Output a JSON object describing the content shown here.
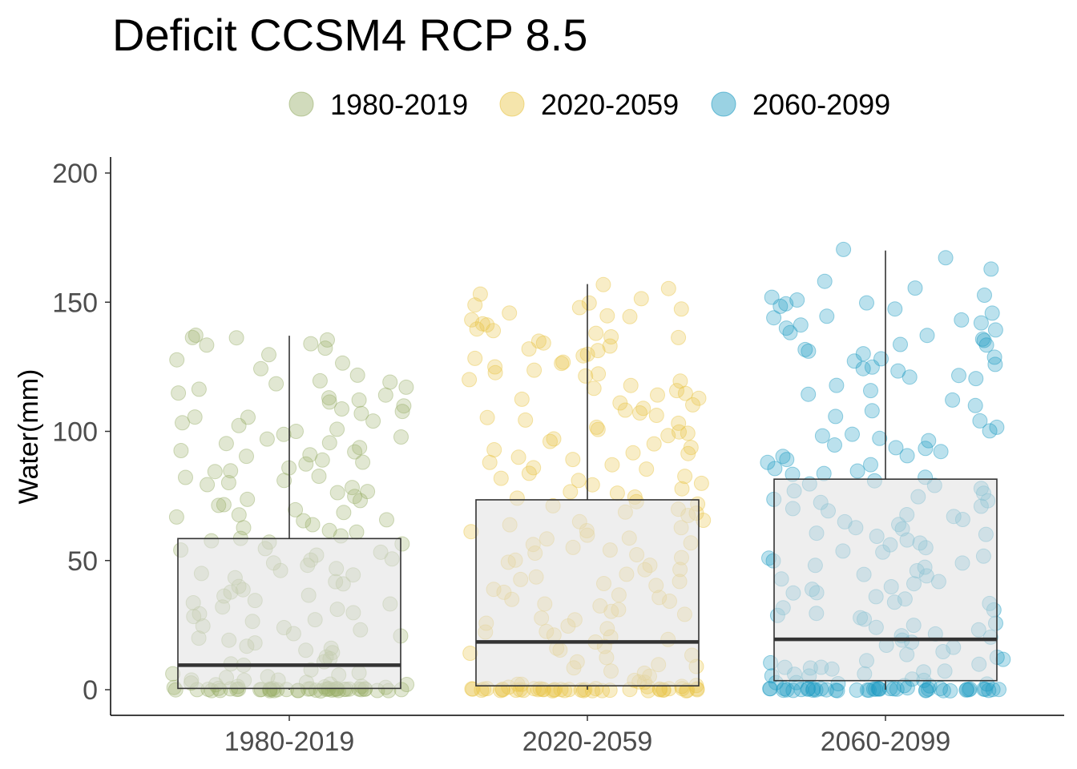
{
  "chart_data": {
    "type": "boxplot-jitter",
    "title": "Deficit CCSM4 RCP 8.5",
    "xlabel": "",
    "ylabel": "Water(mm)",
    "ylim": [
      0,
      200
    ],
    "y_ticks": [
      "0",
      "50",
      "100",
      "150",
      "200"
    ],
    "categories": [
      "1980-2019",
      "2020-2059",
      "2060-2099"
    ],
    "legend": {
      "position": "top",
      "entries": [
        "1980-2019",
        "2020-2059",
        "2060-2099"
      ]
    },
    "grid": false,
    "box_fill": "#e0e0e0",
    "box_stroke": "#333333",
    "series": [
      {
        "name": "1980-2019",
        "color": "#9aaf6b",
        "box": {
          "whisker_low": 0,
          "q1": 0.5,
          "median": 9.5,
          "q3": 58.5,
          "whisker_high": 137
        },
        "points": [
          0,
          0,
          0,
          0,
          0,
          0,
          0,
          0,
          0,
          0,
          0,
          0,
          0,
          0,
          0,
          0,
          0,
          0,
          0,
          0,
          0,
          0,
          0,
          0,
          0,
          0,
          0,
          0,
          0,
          0,
          0,
          0,
          0,
          0,
          0,
          0,
          0,
          0,
          0,
          0,
          0.5,
          0.5,
          1,
          1,
          1,
          1.5,
          1.5,
          2,
          2,
          2.5,
          3,
          3,
          3.5,
          4,
          4,
          5,
          5,
          6,
          6,
          7,
          8,
          9,
          10,
          11,
          12,
          13,
          14,
          15,
          16,
          17,
          18,
          19,
          20,
          21,
          22,
          23,
          24,
          25,
          26,
          27,
          28,
          29,
          30,
          31,
          32,
          33,
          34,
          35,
          36,
          37,
          38,
          39,
          40,
          41,
          42,
          43,
          44,
          45,
          46,
          47,
          48,
          49,
          50,
          51,
          52,
          53,
          54,
          55,
          56,
          57,
          58,
          59,
          60,
          61,
          62,
          63,
          64,
          65,
          66,
          67,
          68,
          69,
          70,
          71,
          72,
          73,
          74,
          75,
          76,
          77,
          78,
          79,
          80,
          81,
          82,
          83,
          84,
          85,
          86,
          87,
          88,
          89,
          90,
          91,
          92,
          93,
          94,
          95,
          96,
          97,
          98,
          99,
          100,
          101,
          102,
          103,
          104,
          105,
          106,
          107,
          108,
          109,
          110,
          111,
          112,
          113,
          114,
          115,
          116,
          117,
          118,
          119,
          120,
          122,
          124,
          126,
          128,
          130,
          132,
          133,
          134,
          135,
          136,
          136,
          137
        ]
      },
      {
        "name": "2020-2059",
        "color": "#e8c547",
        "box": {
          "whisker_low": 0,
          "q1": 1.5,
          "median": 18.5,
          "q3": 73.5,
          "whisker_high": 157
        },
        "points": [
          0,
          0,
          0,
          0,
          0,
          0,
          0,
          0,
          0,
          0,
          0,
          0,
          0,
          0,
          0,
          0,
          0,
          0,
          0,
          0,
          0,
          0,
          0,
          0,
          0,
          0,
          0,
          0,
          0,
          0,
          0,
          0,
          0,
          0,
          0,
          0,
          0,
          0,
          0,
          0,
          0.5,
          0.5,
          1,
          1,
          1.5,
          2,
          2,
          3,
          3,
          4,
          5,
          6,
          7,
          8,
          9,
          10,
          11,
          12,
          13,
          14,
          15,
          16,
          17,
          18,
          19,
          20,
          21,
          22,
          23,
          24,
          25,
          26,
          27,
          28,
          29,
          30,
          31,
          32,
          33,
          34,
          35,
          36,
          37,
          38,
          39,
          40,
          41,
          42,
          43,
          44,
          45,
          46,
          47,
          48,
          49,
          50,
          51,
          52,
          53,
          54,
          55,
          56,
          57,
          58,
          59,
          60,
          61,
          62,
          63,
          64,
          65,
          66,
          67,
          68,
          69,
          70,
          71,
          72,
          73,
          74,
          75,
          76,
          77,
          78,
          79,
          80,
          81,
          82,
          83,
          84,
          85,
          86,
          87,
          88,
          89,
          90,
          91,
          92,
          93,
          94,
          95,
          96,
          97,
          98,
          99,
          100,
          101,
          102,
          103,
          104,
          105,
          106,
          107,
          108,
          109,
          110,
          111,
          112,
          113,
          114,
          115,
          116,
          117,
          118,
          119,
          120,
          121,
          122,
          123,
          124,
          125,
          126,
          127,
          128,
          129,
          130,
          131,
          132,
          133,
          134,
          135,
          136,
          137,
          138,
          139,
          140,
          141,
          142,
          143,
          144,
          145,
          146,
          147,
          148,
          149,
          150,
          151,
          153,
          155,
          157
        ]
      },
      {
        "name": "2060-2099",
        "color": "#1f9bc2",
        "box": {
          "whisker_low": 0,
          "q1": 3.5,
          "median": 19.5,
          "q3": 81.5,
          "whisker_high": 170
        },
        "points": [
          0,
          0,
          0,
          0,
          0,
          0,
          0,
          0,
          0,
          0,
          0,
          0,
          0,
          0,
          0,
          0,
          0,
          0,
          0,
          0,
          0,
          0,
          0,
          0,
          0,
          0,
          0,
          0,
          0,
          0,
          0,
          0,
          0,
          0,
          0,
          0,
          0,
          0,
          0,
          0,
          0.5,
          0.5,
          1,
          1,
          1.5,
          2,
          2,
          3,
          3,
          4,
          4,
          5,
          5,
          6,
          6,
          7,
          7,
          8,
          8,
          9,
          9,
          10,
          10,
          11,
          12,
          13,
          14,
          15,
          16,
          17,
          18,
          19,
          20,
          21,
          22,
          23,
          24,
          25,
          26,
          27,
          28,
          29,
          30,
          31,
          32,
          33,
          34,
          35,
          36,
          37,
          38,
          39,
          40,
          41,
          42,
          43,
          44,
          45,
          46,
          47,
          48,
          49,
          50,
          51,
          52,
          53,
          54,
          55,
          56,
          57,
          58,
          59,
          60,
          61,
          62,
          63,
          64,
          65,
          66,
          67,
          68,
          69,
          70,
          71,
          72,
          73,
          74,
          75,
          76,
          77,
          78,
          79,
          80,
          81,
          82,
          83,
          84,
          85,
          86,
          87,
          88,
          89,
          90,
          91,
          92,
          93,
          94,
          95,
          96,
          97,
          98,
          99,
          100,
          102,
          104,
          106,
          108,
          110,
          112,
          114,
          116,
          118,
          120,
          121,
          122,
          123,
          124,
          125,
          126,
          127,
          128,
          129,
          130,
          131,
          132,
          133,
          134,
          135,
          136,
          137,
          138,
          139,
          140,
          141,
          142,
          143,
          144,
          145,
          146,
          147,
          148,
          149,
          150,
          151,
          152,
          153,
          155,
          158,
          163,
          167,
          170
        ]
      }
    ]
  }
}
